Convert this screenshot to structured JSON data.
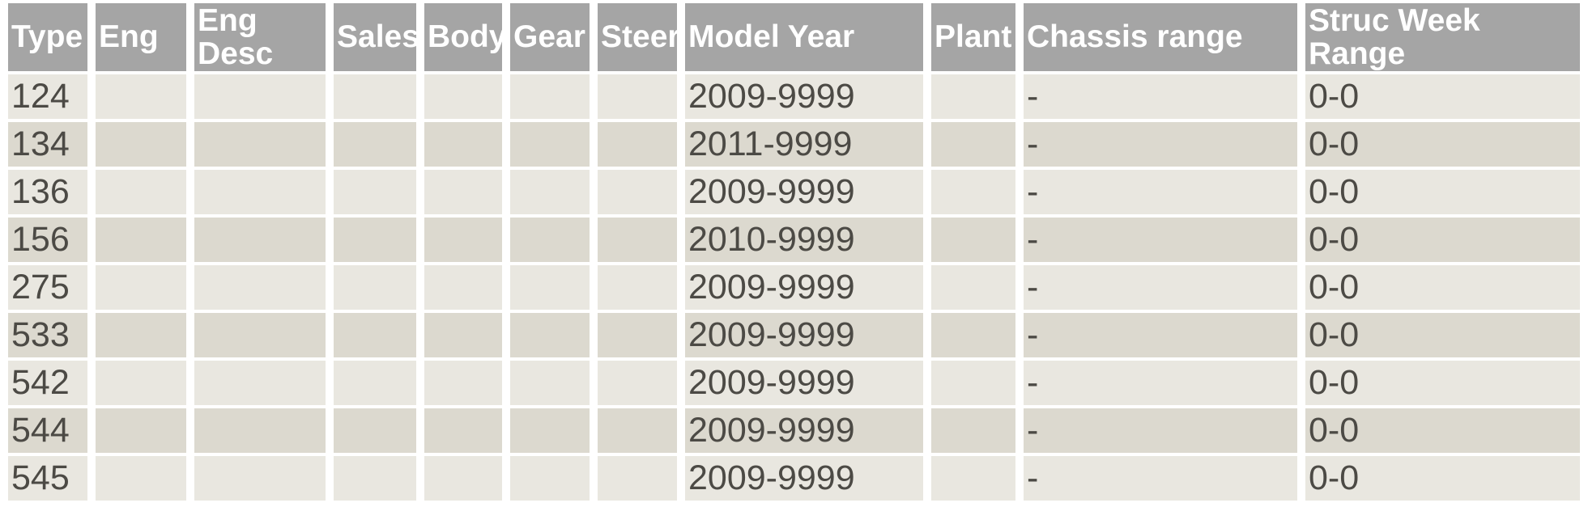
{
  "colors": {
    "page_bg": "#ffffff",
    "header_bg": "#a5a5a5",
    "header_text": "#ffffff",
    "row_light_bg": "#e9e7e0",
    "row_dark_bg": "#dcd9cf",
    "cell_text": "#4c4a45"
  },
  "table": {
    "columns": [
      {
        "key": "type",
        "label": "Type"
      },
      {
        "key": "eng",
        "label": "Eng"
      },
      {
        "key": "eng_desc",
        "label": "Eng Desc"
      },
      {
        "key": "sales",
        "label": "Sales"
      },
      {
        "key": "body",
        "label": "Body"
      },
      {
        "key": "gear",
        "label": "Gear"
      },
      {
        "key": "steer",
        "label": "Steer"
      },
      {
        "key": "model_year",
        "label": "Model Year"
      },
      {
        "key": "plant",
        "label": "Plant"
      },
      {
        "key": "chassis_range",
        "label": "Chassis range"
      },
      {
        "key": "struc_week_range",
        "label": "Struc Week Range"
      }
    ],
    "rows": [
      {
        "type": "124",
        "eng": "",
        "eng_desc": "",
        "sales": "",
        "body": "",
        "gear": "",
        "steer": "",
        "model_year": "2009-9999",
        "plant": "",
        "chassis_range": "-",
        "struc_week_range": "0-0"
      },
      {
        "type": "134",
        "eng": "",
        "eng_desc": "",
        "sales": "",
        "body": "",
        "gear": "",
        "steer": "",
        "model_year": "2011-9999",
        "plant": "",
        "chassis_range": "-",
        "struc_week_range": "0-0"
      },
      {
        "type": "136",
        "eng": "",
        "eng_desc": "",
        "sales": "",
        "body": "",
        "gear": "",
        "steer": "",
        "model_year": "2009-9999",
        "plant": "",
        "chassis_range": "-",
        "struc_week_range": "0-0"
      },
      {
        "type": "156",
        "eng": "",
        "eng_desc": "",
        "sales": "",
        "body": "",
        "gear": "",
        "steer": "",
        "model_year": "2010-9999",
        "plant": "",
        "chassis_range": "-",
        "struc_week_range": "0-0"
      },
      {
        "type": "275",
        "eng": "",
        "eng_desc": "",
        "sales": "",
        "body": "",
        "gear": "",
        "steer": "",
        "model_year": "2009-9999",
        "plant": "",
        "chassis_range": "-",
        "struc_week_range": "0-0"
      },
      {
        "type": "533",
        "eng": "",
        "eng_desc": "",
        "sales": "",
        "body": "",
        "gear": "",
        "steer": "",
        "model_year": "2009-9999",
        "plant": "",
        "chassis_range": "-",
        "struc_week_range": "0-0"
      },
      {
        "type": "542",
        "eng": "",
        "eng_desc": "",
        "sales": "",
        "body": "",
        "gear": "",
        "steer": "",
        "model_year": "2009-9999",
        "plant": "",
        "chassis_range": "-",
        "struc_week_range": "0-0"
      },
      {
        "type": "544",
        "eng": "",
        "eng_desc": "",
        "sales": "",
        "body": "",
        "gear": "",
        "steer": "",
        "model_year": "2009-9999",
        "plant": "",
        "chassis_range": "-",
        "struc_week_range": "0-0"
      },
      {
        "type": "545",
        "eng": "",
        "eng_desc": "",
        "sales": "",
        "body": "",
        "gear": "",
        "steer": "",
        "model_year": "2009-9999",
        "plant": "",
        "chassis_range": "-",
        "struc_week_range": "0-0"
      }
    ]
  }
}
